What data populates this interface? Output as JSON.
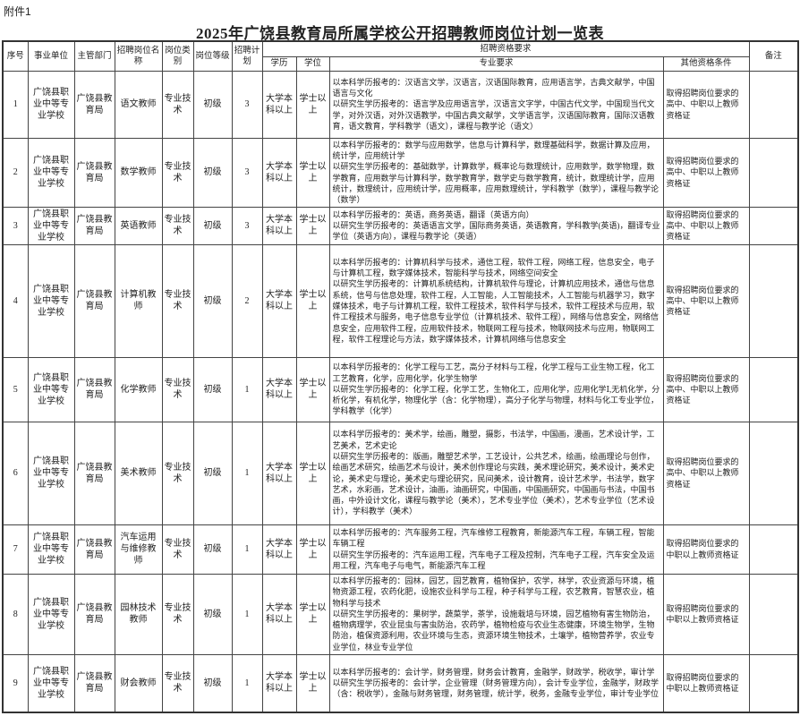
{
  "attachment_label": "附件1",
  "title": "2025年广饶县教育局所属学校公开招聘教师岗位计划一览表",
  "headers": {
    "no": "序号",
    "unit": "事业单位",
    "dept": "主管部门",
    "post": "招聘岗位名称",
    "category": "岗位类别",
    "level": "岗位等级",
    "plan": "招聘计划",
    "requirements": "招聘资格要求",
    "education": "学历",
    "degree": "学位",
    "major": "专业要求",
    "other": "其他资格条件",
    "remark": "备注"
  },
  "rows": [
    {
      "no": "1",
      "unit": "广饶县职业中等专业学校",
      "dept": "广饶县教育局",
      "post": "语文教师",
      "category": "专业技术",
      "level": "初级",
      "plan": "3",
      "education": "大学本科以上",
      "degree": "学士以上",
      "major_undergrad": "以本科学历报考的：汉语言文学，汉语言，汉语国际教育，应用语言学，古典文献学，中国语言与文化",
      "major_grad": "以研究生学历报考的：语言学及应用语言学，汉语言文字学，中国古代文学，中国现当代文学，对外汉语，对外汉语教学，中国古典文献学，文学语言学，汉语国际教育，国际汉语教育，语文教育，学科教学（语文），课程与教学论（语文）",
      "other": "取得招聘岗位要求的高中、中职以上教师资格证",
      "remark": ""
    },
    {
      "no": "2",
      "unit": "广饶县职业中等专业学校",
      "dept": "广饶县教育局",
      "post": "数学教师",
      "category": "专业技术",
      "level": "初级",
      "plan": "3",
      "education": "大学本科以上",
      "degree": "学士以上",
      "major_undergrad": "以本科学历报考的：数学与应用数学，信息与计算科学，数理基础科学，数据计算及应用，统计学，应用统计学",
      "major_grad": "以研究生学历报考的：基础数学，计算数学，概率论与数理统计，应用数学，数学物理，数学教育，应用数学与计算科学，数学教育学，数学史与数学教育，统计，数理统计学，应用统计，数理统计，应用统计学，应用概率，应用数理统计，学科教学（数学），课程与教学论（数学）",
      "other": "取得招聘岗位要求的高中、中职以上教师资格证",
      "remark": ""
    },
    {
      "no": "3",
      "unit": "广饶县职业中等专业学校",
      "dept": "广饶县教育局",
      "post": "英语教师",
      "category": "专业技术",
      "level": "初级",
      "plan": "3",
      "education": "大学本科以上",
      "degree": "学士以上",
      "major_undergrad": "以本科学历报考的：英语，商务英语，翻译（英语方向）",
      "major_grad": "以研究生学历报考的：英语语言文学，国际商务英语，英语教育，学科教学(英语)，翻译专业学位（英语方向），课程与教学论（英语）",
      "other": "取得招聘岗位要求的高中、中职以上教师资格证",
      "remark": ""
    },
    {
      "no": "4",
      "unit": "广饶县职业中等专业学校",
      "dept": "广饶县教育局",
      "post": "计算机教师",
      "category": "专业技术",
      "level": "初级",
      "plan": "2",
      "education": "大学本科以上",
      "degree": "学士以上",
      "major_undergrad": "以本科学历报考的：计算机科学与技术，通信工程，软件工程，网络工程，信息安全，电子与计算机工程，数字媒体技术，智能科学与技术，网络空间安全",
      "major_grad": "以研究生学历报考的：计算机系统结构，计算机软件与理论，计算机应用技术，通信与信息系统，信号与信息处理，软件工程，人工智能，人工智能技术，人工智能与机器学习，数字媒体技术，电子与计算机工程，软件工程技术，软件科学与技术，软件工程技术与应用，软件工程技术与服务，电子信息专业学位（计算机技术、软件工程），网络与信息安全，网络信息安全，应用软件工程，应用软件技术，物联网工程与技术，物联网技术与应用，物联网工程，软件工程理论与方法，数字媒体技术，计算机网络与信息安全",
      "other": "取得招聘岗位要求的高中、中职以上教师资格证",
      "remark": ""
    },
    {
      "no": "5",
      "unit": "广饶县职业中等专业学校",
      "dept": "广饶县教育局",
      "post": "化学教师",
      "category": "专业技术",
      "level": "初级",
      "plan": "1",
      "education": "大学本科以上",
      "degree": "学士以上",
      "major_undergrad": "以本科学历报考的：化学工程与工艺，高分子材料与工程，化学工程与工业生物工程，化工工艺教育，化学，应用化学，化学生物学",
      "major_grad": "以研究生学历报考的：化学工程，化学工艺，生物化工，应用化学，应用化学Ⅰ,无机化学，分析化学，有机化学，物理化学（含：化学物理），高分子化学与物理，材料与化工专业学位，学科教学（化学）",
      "other": "取得招聘岗位要求的高中、中职以上教师资格证",
      "remark": ""
    },
    {
      "no": "6",
      "unit": "广饶县职业中等专业学校",
      "dept": "广饶县教育局",
      "post": "美术教师",
      "category": "专业技术",
      "level": "初级",
      "plan": "1",
      "education": "大学本科以上",
      "degree": "学士以上",
      "major_undergrad": "以本科学历报考的：美术学，绘画，雕塑，摄影，书法学，中国画，漫画，艺术设计学，工艺美术，艺术史论",
      "major_grad": "以研究生学历报考的：版画，雕塑艺术学，工艺设计，公共艺术，绘画，绘画理论与创作，绘画艺术研究，绘画艺术与设计，美术创作理论与实践，美术理论研究，美术设计，美术史论，美术史与理论，美术史与理论研究，民间美术，设计教育，设计艺术学，书法学，数字艺术，水彩画，艺术设计，油画，油画研究，中国画，中国画研究，中国画与书法，中国书画，中外设计文化，课程与教学论（美术），艺术专业学位（美术），艺术专业学位（艺术设计），学科教学（美术）",
      "other": "取得招聘岗位要求的高中、中职以上教师资格证",
      "remark": ""
    },
    {
      "no": "7",
      "unit": "广饶县职业中等专业学校",
      "dept": "广饶县教育局",
      "post": "汽车运用与维修教师",
      "category": "专业技术",
      "level": "初级",
      "plan": "1",
      "education": "大学本科以上",
      "degree": "学士以上",
      "major_undergrad": "以本科学历报考的：汽车服务工程，汽车维修工程教育，新能源汽车工程，车辆工程，智能车辆工程",
      "major_grad": "以研究生学历报考的：汽车运用工程，汽车电子工程及控制，汽车电子工程，汽车安全及运用工程，汽车电子与电气，新能源汽车工程",
      "other": "取得招聘岗位要求的中职以上教师资格证",
      "remark": ""
    },
    {
      "no": "8",
      "unit": "广饶县职业中等专业学校",
      "dept": "广饶县教育局",
      "post": "园林技术教师",
      "category": "专业技术",
      "level": "初级",
      "plan": "1",
      "education": "大学本科以上",
      "degree": "学士以上",
      "major_undergrad": "以本科学历报考的：园林，园艺，园艺教育，植物保护，农学，林学，农业资源与环境，植物资源工程，农药化肥，设施农业科学与工程，种子科学与工程，农艺教育，智慧农业，植物科学与技术",
      "major_grad": "以研究生学历报考的：果树学，蔬菜学，茶学，设施栽培与环境，园艺植物有害生物防治，植物病理学，农业昆虫与害虫防治，农药学，植物检疫与农业生态健康，环境生物学，生物防治，植保资源利用，农业环境与生态，资源环境生物技术，土壤学，植物营养学，农业专业学位，林业专业学位",
      "other": "取得招聘岗位要求的中职以上教师资格证",
      "remark": ""
    },
    {
      "no": "9",
      "unit": "广饶县职业中等专业学校",
      "dept": "广饶县教育局",
      "post": "财会教师",
      "category": "专业技术",
      "level": "初级",
      "plan": "1",
      "education": "大学本科以上",
      "degree": "学士以上",
      "major_undergrad": "以本科学历报考的：会计学，财务管理，财务会计教育，金融学，财政学，税收学，审计学",
      "major_grad": "以研究生学历报考的：会计学，企业管理（财务管理方向），会计专业学位，金融学，财政学（含：税收学），金融与财务管理，财务管理，统计学，税务，金融专业学位，审计专业学位",
      "other": "取得招聘岗位要求的中职以上教师资格证",
      "remark": ""
    }
  ]
}
